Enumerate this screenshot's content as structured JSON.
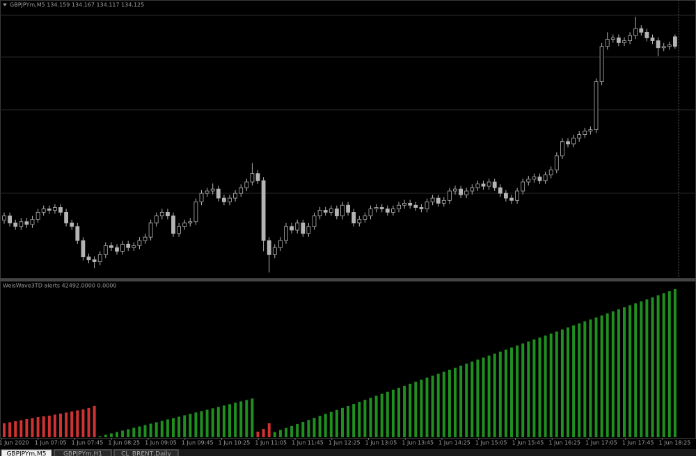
{
  "chart_data": [
    {
      "type": "candlestick",
      "title": "GBPJPYm,M5  134.159 134.167 134.117 134.125",
      "color": "#b4b4b4",
      "ohlc": [
        [
          133.51,
          133.537,
          133.498,
          133.525
        ],
        [
          133.525,
          133.537,
          133.488,
          133.5
        ],
        [
          133.5,
          133.512,
          133.476,
          133.488
        ],
        [
          133.488,
          133.517,
          133.476,
          133.505
        ],
        [
          133.505,
          133.517,
          133.483,
          133.495
        ],
        [
          133.495,
          133.525,
          133.483,
          133.513
        ],
        [
          133.513,
          133.55,
          133.501,
          133.538
        ],
        [
          133.538,
          133.562,
          133.526,
          133.55
        ],
        [
          133.55,
          133.562,
          133.533,
          133.545
        ],
        [
          133.545,
          133.567,
          133.533,
          133.555
        ],
        [
          133.555,
          133.567,
          133.526,
          133.538
        ],
        [
          133.538,
          133.55,
          133.488,
          133.5
        ],
        [
          133.5,
          133.512,
          133.476,
          133.488
        ],
        [
          133.488,
          133.5,
          133.426,
          133.438
        ],
        [
          133.438,
          133.45,
          133.368,
          133.38
        ],
        [
          133.38,
          133.392,
          133.358,
          133.37
        ],
        [
          133.37,
          133.382,
          133.34,
          133.363
        ],
        [
          133.363,
          133.4,
          133.351,
          133.388
        ],
        [
          133.388,
          133.432,
          133.376,
          133.42
        ],
        [
          133.42,
          133.432,
          133.401,
          133.413
        ],
        [
          133.413,
          133.425,
          133.388,
          133.4
        ],
        [
          133.4,
          133.437,
          133.388,
          133.425
        ],
        [
          133.425,
          133.437,
          133.401,
          133.413
        ],
        [
          133.413,
          133.432,
          133.401,
          133.42
        ],
        [
          133.42,
          133.45,
          133.408,
          133.438
        ],
        [
          133.438,
          133.462,
          133.426,
          133.45
        ],
        [
          133.45,
          133.512,
          133.438,
          133.5
        ],
        [
          133.5,
          133.537,
          133.488,
          133.525
        ],
        [
          133.525,
          133.55,
          133.513,
          133.538
        ],
        [
          133.538,
          133.55,
          133.513,
          133.525
        ],
        [
          133.525,
          133.537,
          133.451,
          133.463
        ],
        [
          133.463,
          133.5,
          133.451,
          133.488
        ],
        [
          133.488,
          133.512,
          133.476,
          133.5
        ],
        [
          133.5,
          133.517,
          133.488,
          133.505
        ],
        [
          133.505,
          133.587,
          133.493,
          133.575
        ],
        [
          133.575,
          133.617,
          133.563,
          133.605
        ],
        [
          133.605,
          133.625,
          133.593,
          133.613
        ],
        [
          133.613,
          133.64,
          133.601,
          133.62
        ],
        [
          133.62,
          133.632,
          133.576,
          133.588
        ],
        [
          133.588,
          133.6,
          133.563,
          133.575
        ],
        [
          133.575,
          133.6,
          133.563,
          133.588
        ],
        [
          133.588,
          133.617,
          133.576,
          133.605
        ],
        [
          133.605,
          133.637,
          133.593,
          133.625
        ],
        [
          133.625,
          133.657,
          133.613,
          133.645
        ],
        [
          133.645,
          133.712,
          133.633,
          133.675
        ],
        [
          133.675,
          133.687,
          133.638,
          133.65
        ],
        [
          133.65,
          133.662,
          133.4,
          133.438
        ],
        [
          133.438,
          133.45,
          133.325,
          133.388
        ],
        [
          133.388,
          133.425,
          133.376,
          133.413
        ],
        [
          133.413,
          133.45,
          133.401,
          133.438
        ],
        [
          133.438,
          133.5,
          133.426,
          133.488
        ],
        [
          133.488,
          133.5,
          133.463,
          133.475
        ],
        [
          133.475,
          133.512,
          133.463,
          133.5
        ],
        [
          133.5,
          133.512,
          133.451,
          133.463
        ],
        [
          133.463,
          133.5,
          133.451,
          133.488
        ],
        [
          133.488,
          133.537,
          133.476,
          133.525
        ],
        [
          133.525,
          133.557,
          133.513,
          133.545
        ],
        [
          133.545,
          133.557,
          133.526,
          133.538
        ],
        [
          133.538,
          133.562,
          133.526,
          133.55
        ],
        [
          133.55,
          133.562,
          133.513,
          133.525
        ],
        [
          133.525,
          133.575,
          133.513,
          133.563
        ],
        [
          133.563,
          133.575,
          133.526,
          133.538
        ],
        [
          133.538,
          133.55,
          133.488,
          133.5
        ],
        [
          133.5,
          133.525,
          133.488,
          133.513
        ],
        [
          133.513,
          133.537,
          133.501,
          133.525
        ],
        [
          133.525,
          133.562,
          133.513,
          133.55
        ],
        [
          133.55,
          133.567,
          133.538,
          133.555
        ],
        [
          133.555,
          133.567,
          133.538,
          133.55
        ],
        [
          133.55,
          133.562,
          133.526,
          133.538
        ],
        [
          133.538,
          133.562,
          133.526,
          133.55
        ],
        [
          133.55,
          133.575,
          133.538,
          133.563
        ],
        [
          133.563,
          133.582,
          133.551,
          133.57
        ],
        [
          133.57,
          133.582,
          133.551,
          133.563
        ],
        [
          133.563,
          133.575,
          133.543,
          133.555
        ],
        [
          133.555,
          133.567,
          133.538,
          133.55
        ],
        [
          133.55,
          133.587,
          133.538,
          133.575
        ],
        [
          133.575,
          133.6,
          133.563,
          133.588
        ],
        [
          133.588,
          133.6,
          133.558,
          133.57
        ],
        [
          133.57,
          133.592,
          133.558,
          133.58
        ],
        [
          133.58,
          133.625,
          133.568,
          133.613
        ],
        [
          133.613,
          133.632,
          133.601,
          133.62
        ],
        [
          133.62,
          133.632,
          133.588,
          133.6
        ],
        [
          133.6,
          133.625,
          133.588,
          133.613
        ],
        [
          133.613,
          133.637,
          133.601,
          133.625
        ],
        [
          133.625,
          133.65,
          133.613,
          133.638
        ],
        [
          133.638,
          133.65,
          133.618,
          133.63
        ],
        [
          133.63,
          133.657,
          133.618,
          133.645
        ],
        [
          133.645,
          133.657,
          133.613,
          133.625
        ],
        [
          133.625,
          133.637,
          133.593,
          133.605
        ],
        [
          133.605,
          133.617,
          133.576,
          133.588
        ],
        [
          133.588,
          133.6,
          133.568,
          133.58
        ],
        [
          133.58,
          133.625,
          133.568,
          133.613
        ],
        [
          133.613,
          133.657,
          133.601,
          133.645
        ],
        [
          133.645,
          133.667,
          133.633,
          133.655
        ],
        [
          133.655,
          133.675,
          133.643,
          133.663
        ],
        [
          133.663,
          133.675,
          133.638,
          133.65
        ],
        [
          133.65,
          133.682,
          133.638,
          133.67
        ],
        [
          133.67,
          133.7,
          133.658,
          133.688
        ],
        [
          133.688,
          133.75,
          133.676,
          133.738
        ],
        [
          133.738,
          133.8,
          133.726,
          133.788
        ],
        [
          133.788,
          133.8,
          133.768,
          133.78
        ],
        [
          133.78,
          133.812,
          133.768,
          133.8
        ],
        [
          133.8,
          133.825,
          133.788,
          133.813
        ],
        [
          133.813,
          133.837,
          133.801,
          133.825
        ],
        [
          133.825,
          133.842,
          133.813,
          133.83
        ],
        [
          133.83,
          134.012,
          133.818,
          134.0
        ],
        [
          134.0,
          134.137,
          133.988,
          134.125
        ],
        [
          134.125,
          134.175,
          134.113,
          134.15
        ],
        [
          134.15,
          134.167,
          134.138,
          134.155
        ],
        [
          134.155,
          134.167,
          134.126,
          134.138
        ],
        [
          134.138,
          134.157,
          134.126,
          134.145
        ],
        [
          134.145,
          134.175,
          134.133,
          134.163
        ],
        [
          134.163,
          134.23,
          134.151,
          134.188
        ],
        [
          134.188,
          134.2,
          134.163,
          134.175
        ],
        [
          134.175,
          134.187,
          134.143,
          134.155
        ],
        [
          134.155,
          134.167,
          134.133,
          134.145
        ],
        [
          134.145,
          134.157,
          134.09,
          134.12
        ],
        [
          134.12,
          134.137,
          134.108,
          134.125
        ],
        [
          134.125,
          134.142,
          134.113,
          134.13
        ],
        [
          134.159,
          134.167,
          134.117,
          134.125
        ]
      ]
    },
    {
      "type": "bar",
      "title": "WeisWave3TD alerts 42492.0000 0.0000",
      "series": [
        {
          "color": "#d03232",
          "values": [
            4000,
            4300,
            4600,
            4900,
            5200,
            5500,
            5800,
            6000,
            6200,
            6500,
            6800,
            7100,
            7400,
            7700,
            8000,
            8400,
            9000,
            null,
            null,
            null,
            null,
            null,
            null,
            null,
            null,
            null,
            null,
            null,
            null,
            null,
            null,
            null,
            null,
            null,
            null,
            null,
            null,
            null,
            null,
            null,
            null,
            null,
            null,
            null,
            null,
            1600,
            2400,
            4000,
            null,
            null,
            null,
            null,
            null,
            null,
            null,
            null,
            null,
            null,
            null,
            null,
            null,
            null,
            null,
            null,
            null,
            null,
            null,
            null,
            null,
            null,
            null,
            null,
            null,
            null,
            null,
            null,
            null,
            null,
            null,
            null,
            null,
            null,
            null,
            null,
            null,
            null,
            null,
            null,
            null,
            null,
            null,
            null,
            null,
            null,
            null,
            null,
            null,
            null,
            null,
            null,
            null,
            null,
            null,
            null,
            null,
            null,
            null,
            null,
            null,
            null,
            null,
            null,
            null,
            null,
            null,
            null,
            null,
            null,
            null,
            null
          ]
        },
        {
          "color": "#1f8f1f",
          "values": [
            null,
            null,
            null,
            null,
            null,
            null,
            null,
            null,
            null,
            null,
            null,
            null,
            null,
            null,
            null,
            null,
            null,
            300,
            700,
            1100,
            1500,
            1900,
            2300,
            2700,
            3100,
            3500,
            3900,
            4300,
            4700,
            5100,
            5500,
            5900,
            6300,
            6700,
            7100,
            7500,
            7900,
            8300,
            8700,
            9100,
            9500,
            9900,
            10300,
            10700,
            11100,
            null,
            null,
            null,
            1500,
            2077,
            2654,
            3231,
            3808,
            4385,
            4962,
            5539,
            6116,
            6693,
            7270,
            7847,
            8424,
            9001,
            9578,
            10155,
            10732,
            11309,
            11886,
            12463,
            13040,
            13617,
            14194,
            14771,
            15348,
            15925,
            16502,
            17079,
            17656,
            18233,
            18810,
            19387,
            19964,
            20541,
            21118,
            21695,
            22272,
            22849,
            23426,
            24003,
            24580,
            25157,
            25734,
            26311,
            26888,
            27465,
            28042,
            28619,
            29196,
            29773,
            30350,
            30927,
            31504,
            32081,
            32658,
            33235,
            33812,
            34389,
            34966,
            35543,
            36120,
            36697,
            37274,
            37851,
            38428,
            39005,
            39582,
            40159,
            40736,
            41313,
            41890,
            42492
          ]
        }
      ]
    }
  ],
  "time_axis": {
    "labels": [
      "1 Jun 2020",
      "1 Jun 07:05",
      "1 Jun 07:45",
      "1 Jun 08:25",
      "1 Jun 09:05",
      "1 Jun 09:45",
      "1 Jun 10:25",
      "1 Jun 11:05",
      "1 Jun 11:45",
      "1 Jun 12:25",
      "1 Jun 13:05",
      "1 Jun 13:45",
      "1 Jun 14:25",
      "1 Jun 15:05",
      "1 Jun 15:45",
      "1 Jun 16:25",
      "1 Jun 17:05",
      "1 Jun 17:45",
      "1 Jun 18:25"
    ]
  },
  "tabs": [
    "GBPJPYm,M5",
    "GBPJPYm,H1",
    "CL_BRENT,Daily"
  ]
}
